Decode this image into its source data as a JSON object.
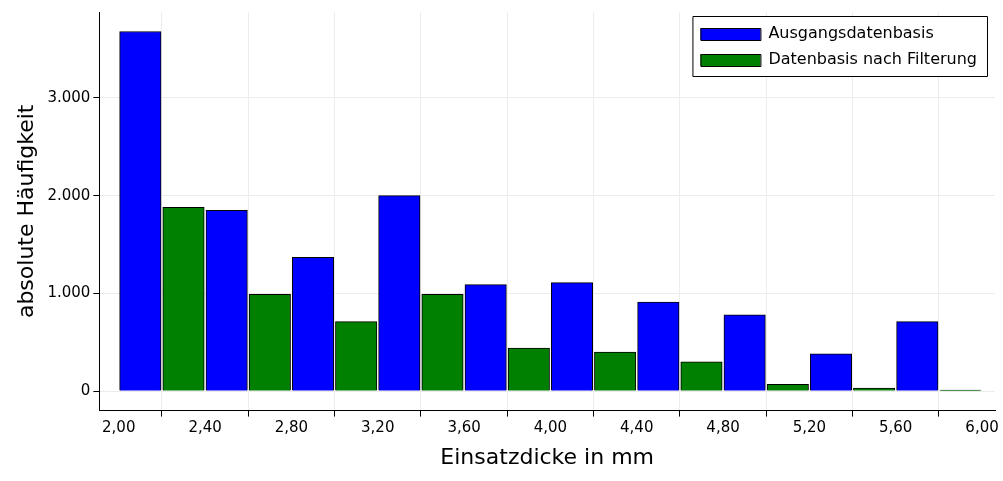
{
  "chart_data": {
    "type": "histogram",
    "xlabel": "Einsatzdicke in mm",
    "ylabel": "absolute Häufigkeit",
    "bins": [
      2.0,
      2.4,
      2.8,
      3.2,
      3.6,
      4.0,
      4.4,
      4.8,
      5.2,
      5.6,
      6.0
    ],
    "series": [
      {
        "name": "Ausgangsdatenbasis",
        "color": "#0000ff",
        "values": [
          3680,
          1850,
          1370,
          2000,
          1090,
          1110,
          910,
          780,
          380,
          710
        ]
      },
      {
        "name": "Datenbasis nach Filterung",
        "color": "#008000",
        "values": [
          1880,
          990,
          710,
          990,
          440,
          400,
          300,
          70,
          30,
          10
        ]
      }
    ],
    "xlim": [
      1.91,
      6.06
    ],
    "xticks": [
      {
        "value": 2.0,
        "label": "2,00"
      },
      {
        "value": 2.4,
        "label": "2,40"
      },
      {
        "value": 2.8,
        "label": "2,80"
      },
      {
        "value": 3.2,
        "label": "3,20"
      },
      {
        "value": 3.6,
        "label": "3,60"
      },
      {
        "value": 4.0,
        "label": "4,00"
      },
      {
        "value": 4.4,
        "label": "4,40"
      },
      {
        "value": 4.8,
        "label": "4,80"
      },
      {
        "value": 5.2,
        "label": "5,20"
      },
      {
        "value": 5.6,
        "label": "5,60"
      },
      {
        "value": 6.0,
        "label": "6,00"
      }
    ],
    "ylim": [
      -200,
      3880
    ],
    "yticks": [
      {
        "value": 0,
        "label": "0"
      },
      {
        "value": 1000,
        "label": "1.000"
      },
      {
        "value": 2000,
        "label": "2.000"
      },
      {
        "value": 3000,
        "label": "3.000"
      }
    ],
    "grid": true,
    "legend": "top right"
  }
}
